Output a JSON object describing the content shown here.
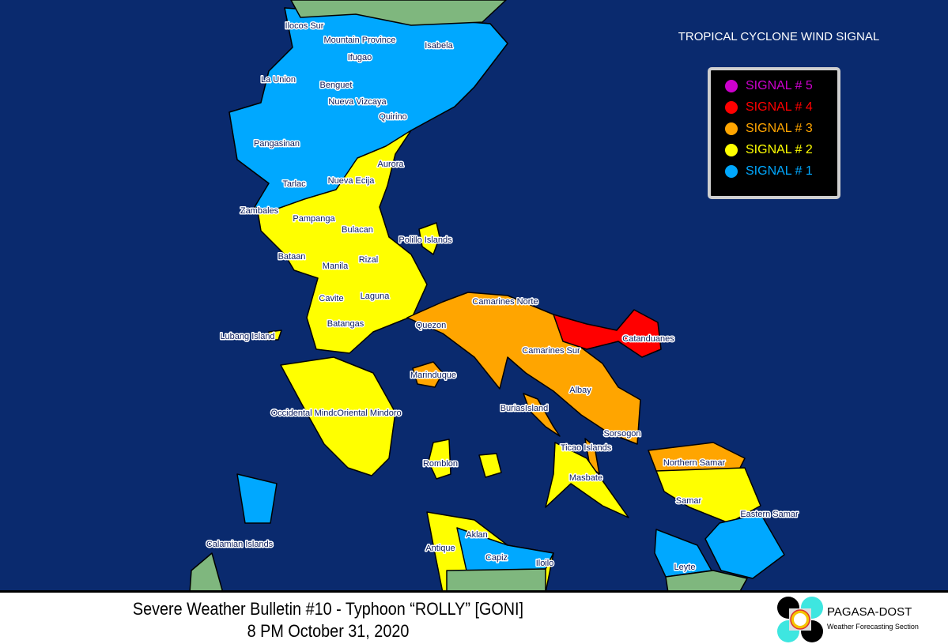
{
  "legend": {
    "title": "TROPICAL CYCLONE WIND SIGNAL",
    "items": [
      {
        "label": "SIGNAL # 5",
        "color": "#cc00cc"
      },
      {
        "label": "SIGNAL # 4",
        "color": "#ff0000"
      },
      {
        "label": "SIGNAL # 3",
        "color": "#ffa500"
      },
      {
        "label": "SIGNAL # 2",
        "color": "#ffff00"
      },
      {
        "label": "SIGNAL # 1",
        "color": "#00a8ff"
      }
    ]
  },
  "colors": {
    "sea": "#0a2a6e",
    "no_signal": "#7fb77e",
    "signal1": "#00a8ff",
    "signal2": "#ffff00",
    "signal3": "#ffa500",
    "signal4": "#ff0000"
  },
  "provinces": {
    "signal1": [
      "Ilocos Sur",
      "Mountain Province",
      "Isabela",
      "Ifugao",
      "La Union",
      "Benguet",
      "Nueva Vizcaya",
      "Quirino",
      "Pangasinan",
      "Tarlac",
      "Zambales",
      "Calamian Islands",
      "Aklan",
      "Capiz",
      "Eastern Samar",
      "Leyte"
    ],
    "signal2": [
      "Aurora",
      "Nueva Ecija",
      "Pampanga",
      "Bulacan",
      "Polillo Islands",
      "Bataan",
      "Rizal",
      "Manila",
      "Cavite",
      "Laguna",
      "Batangas",
      "Lubang Island",
      "Occidental Mindoro",
      "Oriental Mindoro",
      "Romblon",
      "Masbate",
      "Samar",
      "Antique",
      "Iloilo",
      "Ticao Islands"
    ],
    "signal3": [
      "Camarines Norte",
      "Quezon",
      "Camarines Sur",
      "Marinduque",
      "Albay",
      "BuriasIsland",
      "Sorsogon",
      "Northern Samar"
    ],
    "signal4": [
      "Catanduanes"
    ]
  },
  "labels": {
    "ilocos_sur": "Ilocos Sur",
    "mountain_province": "Mountain Province",
    "isabela": "Isabela",
    "ifugao": "Ifugao",
    "la_union": "La Union",
    "benguet": "Benguet",
    "nueva_vizcaya": "Nueva Vizcaya",
    "quirino": "Quirino",
    "pangasinan": "Pangasinan",
    "aurora": "Aurora",
    "nueva_ecija": "Nueva Ecija",
    "tarlac": "Tarlac",
    "zambales": "Zambales",
    "pampanga": "Pampanga",
    "bulacan": "Bulacan",
    "polillo": "Polillo Islands",
    "bataan": "Bataan",
    "rizal": "Rizal",
    "manila": "Manila",
    "cavite": "Cavite",
    "laguna": "Laguna",
    "camarines_norte": "Camarines Norte",
    "batangas": "Batangas",
    "quezon": "Quezon",
    "lubang": "Lubang Island",
    "catanduanes": "Catanduanes",
    "camarines_sur": "Camarines Sur",
    "marinduque": "Marinduque",
    "albay": "Albay",
    "burias": "BuriasIsland",
    "occ_mindoro": "Occidental Mindoro",
    "or_mindoro": "Oriental Mindoro",
    "sorsogon": "Sorsogon",
    "ticao": "Ticao Islands",
    "romblon": "Romblon",
    "northern_samar": "Northern Samar",
    "masbate": "Masbate",
    "samar": "Samar",
    "eastern_samar": "Eastern Samar",
    "calamian": "Calamian Islands",
    "antique": "Antique",
    "aklan": "Aklan",
    "capiz": "Capiz",
    "iloilo": "Iloilo",
    "leyte": "Leyte"
  },
  "footer": {
    "title": "Severe Weather Bulletin #10 - Typhoon “ROLLY” [GONI]",
    "date": "8 PM October 31, 2020",
    "org": "PAGASA-DOST",
    "org_sub": "Weather Forecasting Section"
  }
}
